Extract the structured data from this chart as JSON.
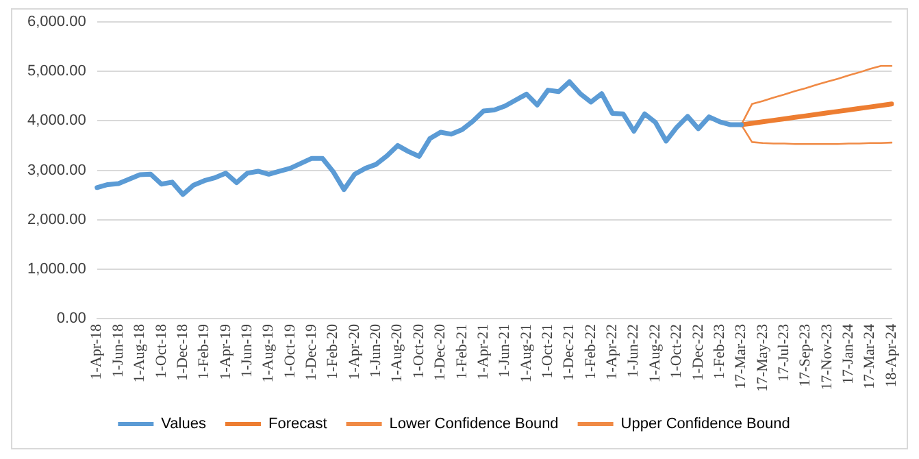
{
  "chart_data": {
    "type": "line",
    "categories": [
      "1-Apr-18",
      null,
      "1-Jun-18",
      null,
      "1-Aug-18",
      null,
      "1-Oct-18",
      null,
      "1-Dec-18",
      null,
      "1-Feb-19",
      null,
      "1-Apr-19",
      null,
      "1-Jun-19",
      null,
      "1-Aug-19",
      null,
      "1-Oct-19",
      null,
      "1-Dec-19",
      null,
      "1-Feb-20",
      null,
      "1-Apr-20",
      null,
      "1-Jun-20",
      null,
      "1-Aug-20",
      null,
      "1-Oct-20",
      null,
      "1-Dec-20",
      null,
      "1-Feb-21",
      null,
      "1-Apr-21",
      null,
      "1-Jun-21",
      null,
      "1-Aug-21",
      null,
      "1-Oct-21",
      null,
      "1-Dec-21",
      null,
      "1-Feb-22",
      null,
      "1-Apr-22",
      null,
      "1-Jun-22",
      null,
      "1-Aug-22",
      null,
      "1-Oct-22",
      null,
      "1-Dec-22",
      null,
      "1-Feb-23",
      null,
      "17-Mar-23",
      null,
      "17-May-23",
      null,
      "17-Jul-23",
      null,
      "17-Sep-23",
      null,
      "17-Nov-23",
      null,
      "17-Jan-24",
      null,
      "17-Mar-24",
      null,
      "18-Apr-24"
    ],
    "series": [
      {
        "name": "Values",
        "color": "#5b9bd5",
        "values": [
          2650,
          2710,
          2730,
          2820,
          2910,
          2920,
          2720,
          2760,
          2510,
          2700,
          2790,
          2850,
          2940,
          2750,
          2940,
          2980,
          2920,
          2980,
          3040,
          3140,
          3240,
          3240,
          2970,
          2610,
          2920,
          3040,
          3120,
          3290,
          3500,
          3380,
          3280,
          3640,
          3770,
          3730,
          3820,
          3990,
          4200,
          4220,
          4300,
          4420,
          4540,
          4320,
          4620,
          4590,
          4790,
          4550,
          4380,
          4550,
          4150,
          4140,
          3790,
          4140,
          3970,
          3590,
          3870,
          4090,
          3840,
          4080,
          3980,
          3920,
          3920,
          null,
          null,
          null,
          null,
          null,
          null,
          null,
          null,
          null,
          null,
          null,
          null,
          null,
          null
        ]
      },
      {
        "name": "Forecast",
        "color": "#ed7d31",
        "values": [
          null,
          null,
          null,
          null,
          null,
          null,
          null,
          null,
          null,
          null,
          null,
          null,
          null,
          null,
          null,
          null,
          null,
          null,
          null,
          null,
          null,
          null,
          null,
          null,
          null,
          null,
          null,
          null,
          null,
          null,
          null,
          null,
          null,
          null,
          null,
          null,
          null,
          null,
          null,
          null,
          null,
          null,
          null,
          null,
          null,
          null,
          null,
          null,
          null,
          null,
          null,
          null,
          null,
          null,
          null,
          null,
          null,
          null,
          null,
          null,
          3920,
          3950,
          3980,
          4010,
          4040,
          4070,
          4100,
          4130,
          4160,
          4190,
          4220,
          4250,
          4280,
          4310,
          4340
        ]
      },
      {
        "name": "Lower Confidence Bound",
        "color": "#f08a45",
        "values": [
          null,
          null,
          null,
          null,
          null,
          null,
          null,
          null,
          null,
          null,
          null,
          null,
          null,
          null,
          null,
          null,
          null,
          null,
          null,
          null,
          null,
          null,
          null,
          null,
          null,
          null,
          null,
          null,
          null,
          null,
          null,
          null,
          null,
          null,
          null,
          null,
          null,
          null,
          null,
          null,
          null,
          null,
          null,
          null,
          null,
          null,
          null,
          null,
          null,
          null,
          null,
          null,
          null,
          null,
          null,
          null,
          null,
          null,
          null,
          null,
          3920,
          3570,
          3550,
          3540,
          3540,
          3530,
          3530,
          3530,
          3530,
          3530,
          3540,
          3540,
          3550,
          3550,
          3560
        ]
      },
      {
        "name": "Upper Confidence Bound",
        "color": "#f08a45",
        "values": [
          null,
          null,
          null,
          null,
          null,
          null,
          null,
          null,
          null,
          null,
          null,
          null,
          null,
          null,
          null,
          null,
          null,
          null,
          null,
          null,
          null,
          null,
          null,
          null,
          null,
          null,
          null,
          null,
          null,
          null,
          null,
          null,
          null,
          null,
          null,
          null,
          null,
          null,
          null,
          null,
          null,
          null,
          null,
          null,
          null,
          null,
          null,
          null,
          null,
          null,
          null,
          null,
          null,
          null,
          null,
          null,
          null,
          null,
          null,
          null,
          3920,
          4340,
          4400,
          4470,
          4530,
          4600,
          4660,
          4730,
          4790,
          4850,
          4920,
          4980,
          5050,
          5110,
          5110
        ]
      }
    ],
    "ylim": [
      0,
      6000
    ],
    "yticks": [
      {
        "value": 0,
        "label": "0.00"
      },
      {
        "value": 1000,
        "label": "1,000.00"
      },
      {
        "value": 2000,
        "label": "2,000.00"
      },
      {
        "value": 3000,
        "label": "3,000.00"
      },
      {
        "value": 4000,
        "label": "4,000.00"
      },
      {
        "value": 5000,
        "label": "5,000.00"
      },
      {
        "value": 6000,
        "label": "6,000.00"
      }
    ],
    "grid": "y",
    "legend": "bottom",
    "marker": "none",
    "line_style": "solid"
  }
}
